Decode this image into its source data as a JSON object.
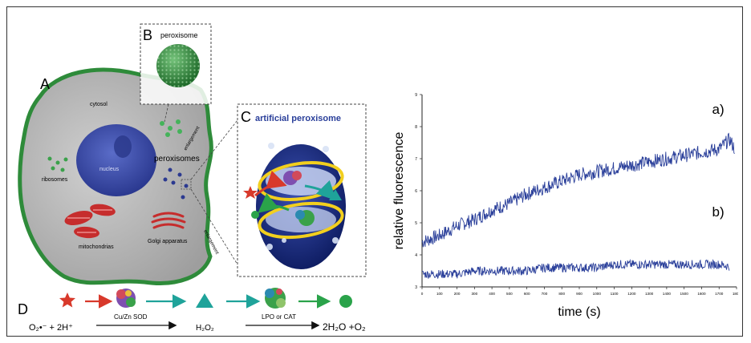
{
  "panels": {
    "A": "A",
    "B": "B",
    "C": "C",
    "D": "D"
  },
  "labels": {
    "peroxisome": "peroxisome",
    "artificial_peroxisome": "artificial peroxisome",
    "cytosol": "cytosol",
    "nucleus": "nucleus",
    "ribosomes": "ribosomes",
    "peroxisomes": "peroxisomes",
    "mitochondrias": "mitochondrias",
    "golgi": "Golgi apparatus",
    "enlargement_1": "enlargement",
    "enlargement_2": "enlargement"
  },
  "pathway": {
    "substrate": "O₂•⁻ + 2H⁺",
    "enzyme1": "Cu/Zn SOD",
    "intermediate": "H₂O₂",
    "enzyme2": "LPO or CAT",
    "product": "2H₂O +O₂"
  },
  "colors": {
    "cell_membrane": "#2e8b3a",
    "cytosol": "#bcbcbc",
    "nucleus": "#3b4ba8",
    "peroxisome": "#2e8b3a",
    "vesicle": "#1a2a7a",
    "ring": "#f2cf1e",
    "arrow_red": "#d8392b",
    "arrow_teal": "#1fa39a",
    "arrow_green": "#2aa34a",
    "trace": "#2a3f9a",
    "title_blue": "#2a3f9a"
  },
  "chart_data": {
    "type": "line",
    "title": "",
    "xlabel": "time (s)",
    "ylabel": "relative fluorescence",
    "xlim": [
      0,
      1800
    ],
    "ylim": [
      3,
      9
    ],
    "xticks": [
      0,
      100,
      200,
      300,
      400,
      500,
      600,
      700,
      800,
      900,
      1000,
      1100,
      1200,
      1300,
      1400,
      1500,
      1600,
      1700,
      1800
    ],
    "yticks": [
      3,
      4,
      5,
      6,
      7,
      8,
      9
    ],
    "grid": false,
    "series": [
      {
        "name": "a)",
        "x": [
          0,
          100,
          200,
          300,
          400,
          500,
          600,
          700,
          800,
          900,
          1000,
          1100,
          1200,
          1300,
          1400,
          1500,
          1600,
          1700,
          1760,
          1800
        ],
        "values": [
          4.4,
          4.6,
          4.9,
          5.1,
          5.4,
          5.6,
          5.9,
          6.1,
          6.3,
          6.5,
          6.6,
          6.7,
          6.8,
          6.9,
          7.0,
          7.1,
          7.2,
          7.3,
          7.6,
          7.2
        ]
      },
      {
        "name": "b)",
        "x": [
          0,
          100,
          200,
          300,
          400,
          500,
          600,
          700,
          800,
          900,
          1000,
          1100,
          1200,
          1300,
          1400,
          1500,
          1600,
          1700,
          1800
        ],
        "values": [
          3.4,
          3.4,
          3.4,
          3.5,
          3.5,
          3.5,
          3.5,
          3.6,
          3.6,
          3.6,
          3.6,
          3.7,
          3.7,
          3.7,
          3.7,
          3.7,
          3.7,
          3.7,
          3.6
        ]
      }
    ]
  }
}
